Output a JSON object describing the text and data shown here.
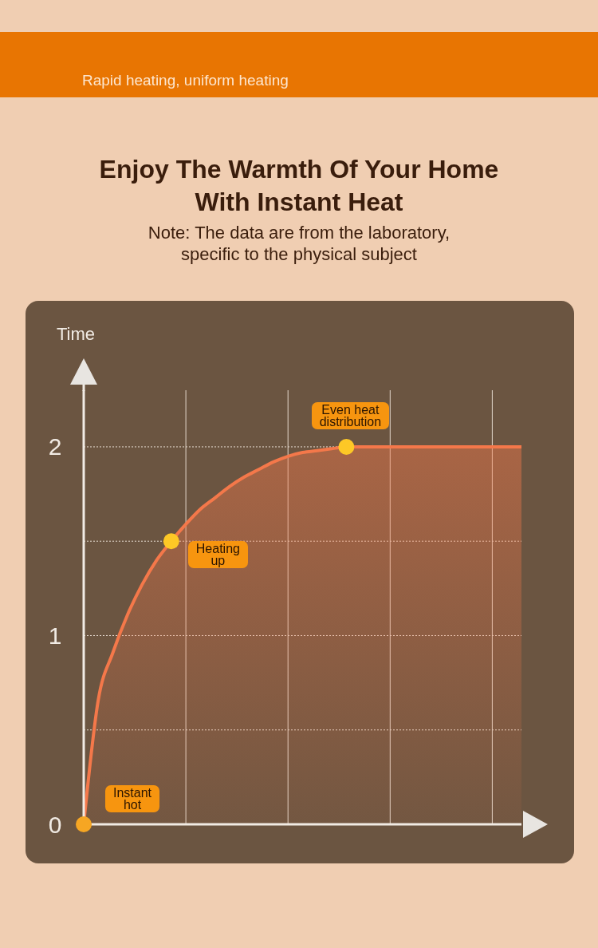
{
  "chart_data": {
    "type": "area",
    "title": "Enjoy The Warmth Of Your Home With Instant Heat",
    "subtitle": "Rapid heating, uniform heating",
    "ylabel": "Time",
    "annotations": [
      "Note: The data are from the laboratory, specific to the physical subject",
      {
        "text": "Instant hot",
        "y": 0
      },
      "Heating up",
      {
        "text": "Even heat distribution",
        "y": 2
      }
    ],
    "categories": [
      null,
      null,
      null,
      null,
      null,
      null,
      null,
      null,
      null,
      null,
      null,
      null,
      null,
      null,
      null,
      null,
      null,
      null,
      null,
      null,
      null,
      null,
      null,
      null,
      null,
      null,
      null,
      null,
      null,
      null,
      null
    ],
    "series": [
      {
        "color": "#f4784a",
        "values": [
          0,
          0.66,
          0.91,
          1.11,
          1.27,
          1.4,
          1.5,
          1.59,
          1.67,
          1.73,
          1.79,
          1.84,
          1.88,
          1.92,
          1.95,
          1.97,
          1.98,
          1.99,
          2,
          2,
          2,
          2,
          2,
          2,
          2,
          2,
          2,
          2,
          2,
          2,
          2
        ]
      }
    ],
    "ylim": [
      0,
      2.3
    ],
    "yticks": [
      0,
      {
        "value": 0.5,
        "label": null
      },
      1,
      {
        "value": 1.5,
        "label": null
      },
      2
    ],
    "grid": true,
    "tick_labels": "y"
  }
}
